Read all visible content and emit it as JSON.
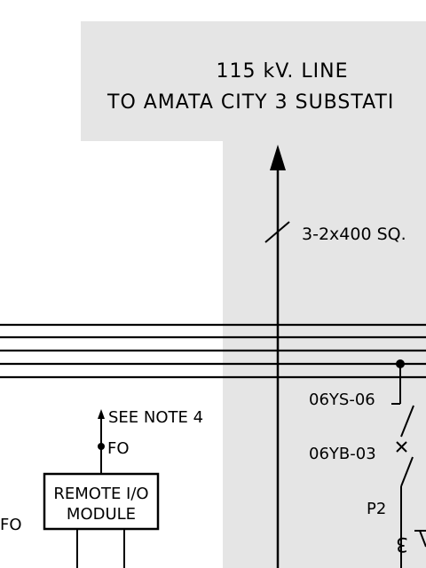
{
  "header": {
    "line1": "115 kV. LINE",
    "line2": "TO AMATA CITY 3 SUBSTATI"
  },
  "labels": {
    "cable": "3-2x400 SQ.",
    "switch_ys": "06YS-06",
    "switch_yb": "06YB-03",
    "p2": "P2",
    "note": "SEE NOTE 4",
    "fo_module": "FO",
    "fo_left": "FO",
    "remote_io_line1": "REMOTE I/O",
    "remote_io_line2": "MODULE",
    "ct_glyph": "3"
  },
  "colors": {
    "line": "#000000",
    "shade": "#e5e5e5",
    "background": "#ffffff"
  }
}
